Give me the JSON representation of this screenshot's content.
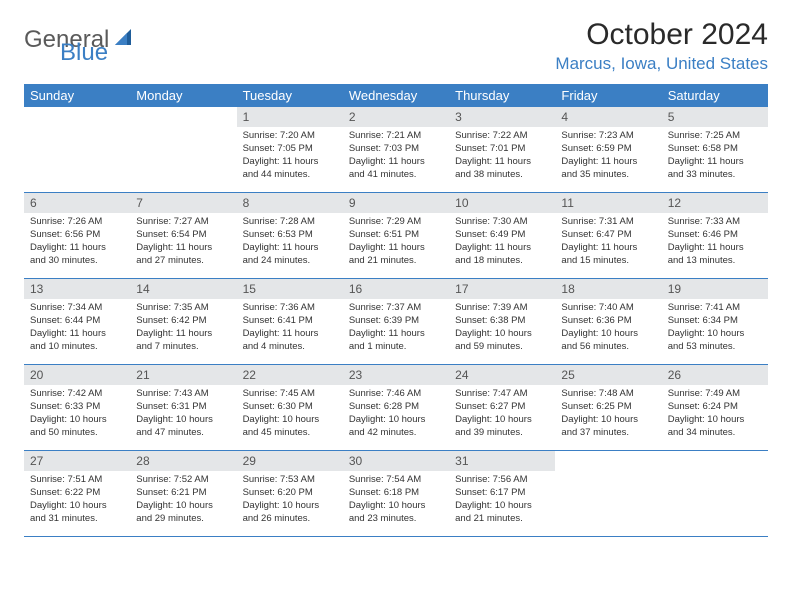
{
  "logo": {
    "general": "General",
    "blue": "Blue"
  },
  "title": "October 2024",
  "location": "Marcus, Iowa, United States",
  "colors": {
    "accent": "#3b7fc4",
    "headerBg": "#3b7fc4",
    "headerText": "#ffffff",
    "dayNumBg": "#e4e6e8",
    "text": "#333333",
    "pageBg": "#ffffff"
  },
  "dayNames": [
    "Sunday",
    "Monday",
    "Tuesday",
    "Wednesday",
    "Thursday",
    "Friday",
    "Saturday"
  ],
  "leadingBlanks": 2,
  "days": [
    {
      "n": 1,
      "sr": "Sunrise: 7:20 AM",
      "ss": "Sunset: 7:05 PM",
      "dl": "Daylight: 11 hours and 44 minutes."
    },
    {
      "n": 2,
      "sr": "Sunrise: 7:21 AM",
      "ss": "Sunset: 7:03 PM",
      "dl": "Daylight: 11 hours and 41 minutes."
    },
    {
      "n": 3,
      "sr": "Sunrise: 7:22 AM",
      "ss": "Sunset: 7:01 PM",
      "dl": "Daylight: 11 hours and 38 minutes."
    },
    {
      "n": 4,
      "sr": "Sunrise: 7:23 AM",
      "ss": "Sunset: 6:59 PM",
      "dl": "Daylight: 11 hours and 35 minutes."
    },
    {
      "n": 5,
      "sr": "Sunrise: 7:25 AM",
      "ss": "Sunset: 6:58 PM",
      "dl": "Daylight: 11 hours and 33 minutes."
    },
    {
      "n": 6,
      "sr": "Sunrise: 7:26 AM",
      "ss": "Sunset: 6:56 PM",
      "dl": "Daylight: 11 hours and 30 minutes."
    },
    {
      "n": 7,
      "sr": "Sunrise: 7:27 AM",
      "ss": "Sunset: 6:54 PM",
      "dl": "Daylight: 11 hours and 27 minutes."
    },
    {
      "n": 8,
      "sr": "Sunrise: 7:28 AM",
      "ss": "Sunset: 6:53 PM",
      "dl": "Daylight: 11 hours and 24 minutes."
    },
    {
      "n": 9,
      "sr": "Sunrise: 7:29 AM",
      "ss": "Sunset: 6:51 PM",
      "dl": "Daylight: 11 hours and 21 minutes."
    },
    {
      "n": 10,
      "sr": "Sunrise: 7:30 AM",
      "ss": "Sunset: 6:49 PM",
      "dl": "Daylight: 11 hours and 18 minutes."
    },
    {
      "n": 11,
      "sr": "Sunrise: 7:31 AM",
      "ss": "Sunset: 6:47 PM",
      "dl": "Daylight: 11 hours and 15 minutes."
    },
    {
      "n": 12,
      "sr": "Sunrise: 7:33 AM",
      "ss": "Sunset: 6:46 PM",
      "dl": "Daylight: 11 hours and 13 minutes."
    },
    {
      "n": 13,
      "sr": "Sunrise: 7:34 AM",
      "ss": "Sunset: 6:44 PM",
      "dl": "Daylight: 11 hours and 10 minutes."
    },
    {
      "n": 14,
      "sr": "Sunrise: 7:35 AM",
      "ss": "Sunset: 6:42 PM",
      "dl": "Daylight: 11 hours and 7 minutes."
    },
    {
      "n": 15,
      "sr": "Sunrise: 7:36 AM",
      "ss": "Sunset: 6:41 PM",
      "dl": "Daylight: 11 hours and 4 minutes."
    },
    {
      "n": 16,
      "sr": "Sunrise: 7:37 AM",
      "ss": "Sunset: 6:39 PM",
      "dl": "Daylight: 11 hours and 1 minute."
    },
    {
      "n": 17,
      "sr": "Sunrise: 7:39 AM",
      "ss": "Sunset: 6:38 PM",
      "dl": "Daylight: 10 hours and 59 minutes."
    },
    {
      "n": 18,
      "sr": "Sunrise: 7:40 AM",
      "ss": "Sunset: 6:36 PM",
      "dl": "Daylight: 10 hours and 56 minutes."
    },
    {
      "n": 19,
      "sr": "Sunrise: 7:41 AM",
      "ss": "Sunset: 6:34 PM",
      "dl": "Daylight: 10 hours and 53 minutes."
    },
    {
      "n": 20,
      "sr": "Sunrise: 7:42 AM",
      "ss": "Sunset: 6:33 PM",
      "dl": "Daylight: 10 hours and 50 minutes."
    },
    {
      "n": 21,
      "sr": "Sunrise: 7:43 AM",
      "ss": "Sunset: 6:31 PM",
      "dl": "Daylight: 10 hours and 47 minutes."
    },
    {
      "n": 22,
      "sr": "Sunrise: 7:45 AM",
      "ss": "Sunset: 6:30 PM",
      "dl": "Daylight: 10 hours and 45 minutes."
    },
    {
      "n": 23,
      "sr": "Sunrise: 7:46 AM",
      "ss": "Sunset: 6:28 PM",
      "dl": "Daylight: 10 hours and 42 minutes."
    },
    {
      "n": 24,
      "sr": "Sunrise: 7:47 AM",
      "ss": "Sunset: 6:27 PM",
      "dl": "Daylight: 10 hours and 39 minutes."
    },
    {
      "n": 25,
      "sr": "Sunrise: 7:48 AM",
      "ss": "Sunset: 6:25 PM",
      "dl": "Daylight: 10 hours and 37 minutes."
    },
    {
      "n": 26,
      "sr": "Sunrise: 7:49 AM",
      "ss": "Sunset: 6:24 PM",
      "dl": "Daylight: 10 hours and 34 minutes."
    },
    {
      "n": 27,
      "sr": "Sunrise: 7:51 AM",
      "ss": "Sunset: 6:22 PM",
      "dl": "Daylight: 10 hours and 31 minutes."
    },
    {
      "n": 28,
      "sr": "Sunrise: 7:52 AM",
      "ss": "Sunset: 6:21 PM",
      "dl": "Daylight: 10 hours and 29 minutes."
    },
    {
      "n": 29,
      "sr": "Sunrise: 7:53 AM",
      "ss": "Sunset: 6:20 PM",
      "dl": "Daylight: 10 hours and 26 minutes."
    },
    {
      "n": 30,
      "sr": "Sunrise: 7:54 AM",
      "ss": "Sunset: 6:18 PM",
      "dl": "Daylight: 10 hours and 23 minutes."
    },
    {
      "n": 31,
      "sr": "Sunrise: 7:56 AM",
      "ss": "Sunset: 6:17 PM",
      "dl": "Daylight: 10 hours and 21 minutes."
    }
  ]
}
